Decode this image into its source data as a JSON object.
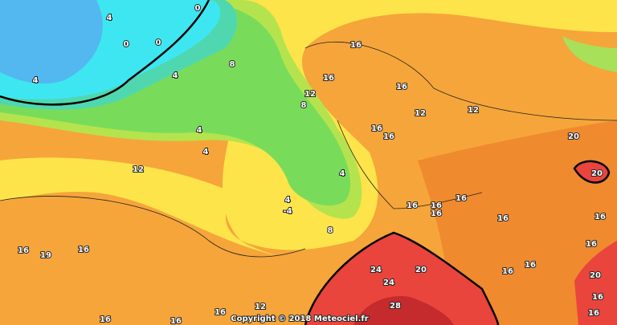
{
  "labels": [
    "0",
    "0",
    "0",
    "4",
    "4",
    "4",
    "8",
    "8",
    "12",
    "16",
    "16",
    "16",
    "12",
    "12",
    "4",
    "4",
    "12",
    "16",
    "16",
    "4",
    "4",
    "-4",
    "8",
    "16",
    "16",
    "16",
    "16",
    "16",
    "20",
    "20",
    "16",
    "16",
    "19",
    "16",
    "24",
    "20",
    "24",
    "16",
    "16",
    "16",
    "20",
    "16",
    "16",
    "28",
    "16",
    "12",
    "16",
    "16"
  ],
  "copyright": "Copyright © 2018 Meteociel.fr"
}
